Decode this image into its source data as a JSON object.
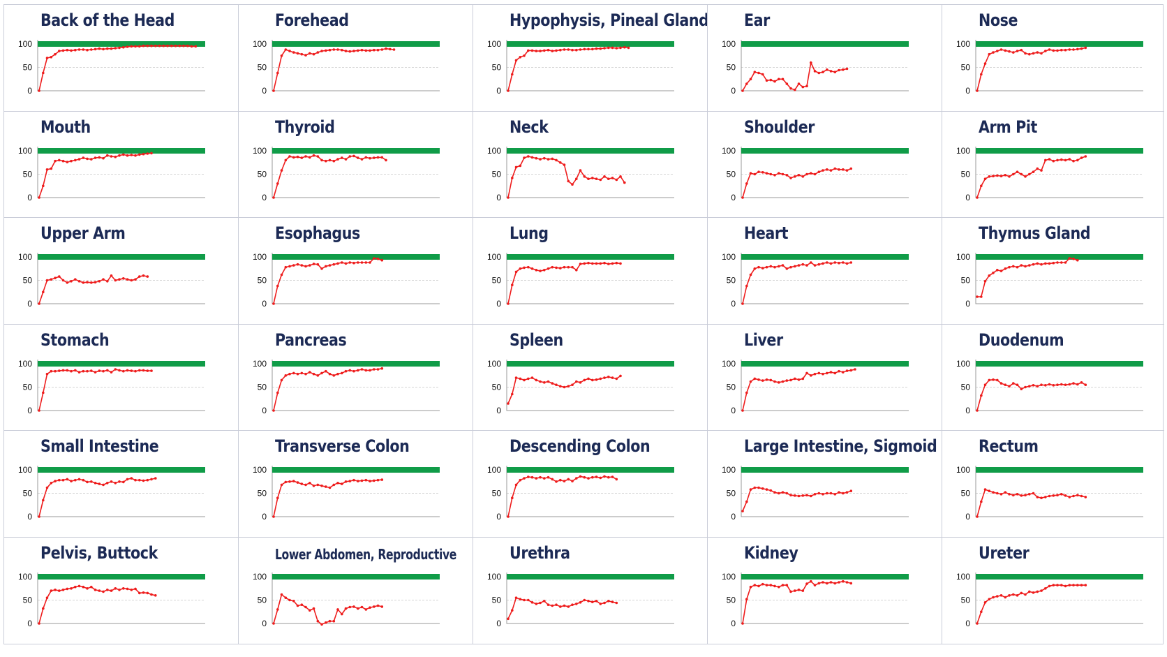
{
  "chart_data": [
    {
      "type": "line",
      "title": "Back of the Head",
      "ylim": [
        0,
        100
      ],
      "yticks": [
        0,
        50,
        100
      ],
      "target": 100,
      "values": [
        0,
        38,
        70,
        72,
        78,
        85,
        86,
        87,
        86,
        87,
        88,
        88,
        87,
        88,
        89,
        90,
        89,
        90,
        90,
        91,
        92,
        93,
        94,
        95,
        95,
        95,
        96,
        96,
        96,
        96,
        96,
        96,
        96,
        96,
        96,
        96,
        96,
        96,
        95,
        95
      ]
    },
    {
      "type": "line",
      "title": "Forehead",
      "ylim": [
        0,
        100
      ],
      "yticks": [
        0,
        50,
        100
      ],
      "target": 100,
      "values": [
        0,
        38,
        75,
        88,
        85,
        82,
        80,
        78,
        76,
        80,
        78,
        82,
        85,
        86,
        87,
        88,
        88,
        87,
        85,
        84,
        85,
        86,
        87,
        86,
        86,
        87,
        87,
        88,
        90,
        89,
        88
      ]
    },
    {
      "type": "line",
      "title": "Hypophysis, Pineal Gland",
      "ylim": [
        0,
        100
      ],
      "yticks": [
        0,
        50,
        100
      ],
      "target": 100,
      "values": [
        0,
        35,
        65,
        72,
        75,
        86,
        86,
        85,
        85,
        86,
        87,
        85,
        86,
        87,
        88,
        88,
        87,
        87,
        88,
        89,
        89,
        89,
        90,
        90,
        91,
        92,
        92,
        91,
        92,
        93,
        92
      ]
    },
    {
      "type": "line",
      "title": "Ear",
      "ylim": [
        0,
        100
      ],
      "yticks": [
        0,
        50,
        100
      ],
      "target": 100,
      "values": [
        0,
        15,
        25,
        40,
        38,
        35,
        22,
        23,
        20,
        25,
        25,
        15,
        5,
        2,
        15,
        8,
        10,
        60,
        42,
        38,
        40,
        45,
        42,
        40,
        44,
        45,
        47
      ]
    },
    {
      "type": "line",
      "title": "Nose",
      "ylim": [
        0,
        100
      ],
      "yticks": [
        0,
        50,
        100
      ],
      "target": 100,
      "values": [
        0,
        35,
        58,
        78,
        82,
        85,
        88,
        86,
        84,
        82,
        85,
        87,
        80,
        78,
        80,
        82,
        80,
        85,
        88,
        86,
        86,
        87,
        87,
        88,
        88,
        89,
        90,
        92
      ]
    },
    {
      "type": "line",
      "title": "Mouth",
      "ylim": [
        0,
        100
      ],
      "yticks": [
        0,
        50,
        100
      ],
      "target": 100,
      "values": [
        0,
        25,
        60,
        62,
        78,
        80,
        78,
        76,
        78,
        80,
        82,
        85,
        83,
        82,
        85,
        86,
        84,
        90,
        88,
        87,
        90,
        92,
        90,
        91,
        90,
        92,
        93,
        94,
        95
      ]
    },
    {
      "type": "line",
      "title": "Thyroid",
      "ylim": [
        0,
        100
      ],
      "yticks": [
        0,
        50,
        100
      ],
      "target": 100,
      "values": [
        0,
        30,
        58,
        80,
        88,
        86,
        87,
        85,
        88,
        86,
        90,
        88,
        80,
        78,
        80,
        78,
        82,
        85,
        82,
        88,
        89,
        85,
        82,
        86,
        84,
        85,
        86,
        86,
        80
      ]
    },
    {
      "type": "line",
      "title": "Neck",
      "ylim": [
        0,
        100
      ],
      "yticks": [
        0,
        50,
        100
      ],
      "target": 100,
      "values": [
        0,
        42,
        65,
        68,
        85,
        88,
        86,
        84,
        82,
        84,
        82,
        83,
        80,
        75,
        70,
        35,
        28,
        40,
        58,
        45,
        40,
        42,
        40,
        38,
        45,
        40,
        42,
        38,
        45,
        32
      ]
    },
    {
      "type": "line",
      "title": "Shoulder",
      "ylim": [
        0,
        100
      ],
      "yticks": [
        0,
        50,
        100
      ],
      "target": 100,
      "values": [
        0,
        30,
        52,
        50,
        55,
        54,
        52,
        50,
        48,
        52,
        50,
        48,
        42,
        45,
        48,
        45,
        50,
        52,
        50,
        55,
        58,
        60,
        58,
        62,
        60,
        60,
        58,
        62
      ]
    },
    {
      "type": "line",
      "title": "Arm Pit",
      "ylim": [
        0,
        100
      ],
      "yticks": [
        0,
        50,
        100
      ],
      "target": 100,
      "values": [
        0,
        25,
        40,
        45,
        46,
        47,
        46,
        48,
        45,
        50,
        55,
        50,
        45,
        50,
        55,
        62,
        58,
        80,
        82,
        78,
        80,
        81,
        80,
        82,
        78,
        80,
        85,
        88
      ]
    },
    {
      "type": "line",
      "title": "Upper Arm",
      "ylim": [
        0,
        100
      ],
      "yticks": [
        0,
        50,
        100
      ],
      "target": 100,
      "values": [
        0,
        25,
        50,
        52,
        55,
        58,
        50,
        45,
        48,
        52,
        48,
        45,
        46,
        45,
        46,
        48,
        52,
        48,
        60,
        50,
        52,
        54,
        52,
        50,
        52,
        58,
        60,
        58
      ]
    },
    {
      "type": "line",
      "title": "Esophagus",
      "ylim": [
        0,
        100
      ],
      "yticks": [
        0,
        50,
        100
      ],
      "target": 100,
      "values": [
        0,
        38,
        62,
        78,
        80,
        82,
        84,
        82,
        80,
        82,
        85,
        84,
        75,
        80,
        82,
        84,
        86,
        88,
        86,
        88,
        87,
        88,
        88,
        88,
        88,
        97,
        96,
        93
      ]
    },
    {
      "type": "line",
      "title": "Lung",
      "ylim": [
        0,
        100
      ],
      "yticks": [
        0,
        50,
        100
      ],
      "target": 100,
      "values": [
        0,
        40,
        68,
        75,
        77,
        78,
        75,
        72,
        70,
        72,
        75,
        78,
        77,
        76,
        78,
        78,
        78,
        72,
        85,
        86,
        87,
        86,
        86,
        86,
        87,
        85,
        86,
        87,
        86
      ]
    },
    {
      "type": "line",
      "title": "Heart",
      "ylim": [
        0,
        100
      ],
      "yticks": [
        0,
        50,
        100
      ],
      "target": 100,
      "values": [
        0,
        38,
        62,
        75,
        78,
        76,
        78,
        80,
        78,
        80,
        82,
        75,
        78,
        80,
        82,
        84,
        82,
        88,
        82,
        84,
        86,
        88,
        86,
        88,
        87,
        88,
        86,
        88
      ]
    },
    {
      "type": "line",
      "title": "Thymus Gland",
      "ylim": [
        0,
        100
      ],
      "yticks": [
        0,
        50,
        100
      ],
      "target": 100,
      "values": [
        15,
        15,
        48,
        60,
        66,
        72,
        70,
        75,
        78,
        80,
        78,
        82,
        80,
        82,
        84,
        86,
        84,
        86,
        86,
        87,
        88,
        88,
        88,
        97,
        96,
        93
      ]
    },
    {
      "type": "line",
      "title": "Stomach",
      "ylim": [
        0,
        100
      ],
      "yticks": [
        0,
        50,
        100
      ],
      "target": 100,
      "values": [
        0,
        38,
        78,
        84,
        84,
        85,
        86,
        86,
        84,
        86,
        82,
        84,
        84,
        85,
        82,
        85,
        84,
        86,
        82,
        88,
        86,
        84,
        86,
        85,
        84,
        86,
        86,
        85,
        85
      ]
    },
    {
      "type": "line",
      "title": "Pancreas",
      "ylim": [
        0,
        100
      ],
      "yticks": [
        0,
        50,
        100
      ],
      "target": 100,
      "values": [
        0,
        38,
        65,
        75,
        78,
        80,
        78,
        80,
        78,
        82,
        78,
        75,
        80,
        84,
        78,
        75,
        78,
        80,
        84,
        86,
        84,
        86,
        88,
        86,
        86,
        88,
        88,
        90
      ]
    },
    {
      "type": "line",
      "title": "Spleen",
      "ylim": [
        0,
        100
      ],
      "yticks": [
        0,
        50,
        100
      ],
      "target": 100,
      "values": [
        15,
        35,
        70,
        68,
        65,
        68,
        70,
        65,
        62,
        60,
        62,
        58,
        55,
        52,
        50,
        52,
        55,
        62,
        60,
        65,
        68,
        65,
        66,
        68,
        70,
        72,
        70,
        68,
        74
      ]
    },
    {
      "type": "line",
      "title": "Liver",
      "ylim": [
        0,
        100
      ],
      "yticks": [
        0,
        50,
        100
      ],
      "target": 100,
      "values": [
        0,
        38,
        62,
        68,
        66,
        64,
        66,
        65,
        62,
        60,
        62,
        64,
        65,
        68,
        66,
        68,
        80,
        75,
        78,
        80,
        78,
        80,
        82,
        80,
        84,
        82,
        85,
        86,
        88
      ]
    },
    {
      "type": "line",
      "title": "Duodenum",
      "ylim": [
        0,
        100
      ],
      "yticks": [
        0,
        50,
        100
      ],
      "target": 100,
      "values": [
        0,
        32,
        55,
        65,
        66,
        65,
        58,
        55,
        52,
        58,
        55,
        46,
        50,
        52,
        54,
        52,
        55,
        54,
        56,
        54,
        55,
        56,
        55,
        56,
        58,
        56,
        60,
        55
      ]
    },
    {
      "type": "line",
      "title": "Small Intestine",
      "ylim": [
        0,
        100
      ],
      "yticks": [
        0,
        50,
        100
      ],
      "target": 100,
      "values": [
        0,
        35,
        62,
        72,
        76,
        78,
        78,
        80,
        76,
        78,
        80,
        78,
        74,
        75,
        72,
        70,
        68,
        72,
        75,
        72,
        75,
        74,
        80,
        82,
        78,
        78,
        77,
        78,
        80,
        82
      ]
    },
    {
      "type": "line",
      "title": "Transverse Colon",
      "ylim": [
        0,
        100
      ],
      "yticks": [
        0,
        50,
        100
      ],
      "target": 100,
      "values": [
        0,
        40,
        68,
        74,
        75,
        76,
        73,
        70,
        68,
        72,
        66,
        68,
        66,
        64,
        62,
        68,
        72,
        70,
        75,
        76,
        78,
        76,
        77,
        78,
        76,
        77,
        78,
        79
      ]
    },
    {
      "type": "line",
      "title": "Descending Colon",
      "ylim": [
        0,
        100
      ],
      "yticks": [
        0,
        50,
        100
      ],
      "target": 100,
      "values": [
        0,
        40,
        68,
        78,
        82,
        85,
        84,
        82,
        84,
        82,
        84,
        80,
        75,
        78,
        76,
        80,
        76,
        82,
        86,
        84,
        82,
        84,
        85,
        83,
        86,
        84,
        85,
        80
      ]
    },
    {
      "type": "line",
      "title": "Large Intestine, Sigmoid",
      "ylim": [
        0,
        100
      ],
      "yticks": [
        0,
        50,
        100
      ],
      "target": 100,
      "values": [
        12,
        32,
        58,
        62,
        62,
        60,
        58,
        56,
        52,
        50,
        52,
        50,
        46,
        45,
        44,
        45,
        46,
        44,
        48,
        50,
        48,
        50,
        50,
        48,
        52,
        50,
        52,
        55
      ]
    },
    {
      "type": "line",
      "title": "Rectum",
      "ylim": [
        0,
        100
      ],
      "yticks": [
        0,
        50,
        100
      ],
      "target": 100,
      "values": [
        0,
        32,
        58,
        55,
        52,
        50,
        48,
        52,
        48,
        46,
        48,
        45,
        46,
        48,
        50,
        42,
        40,
        42,
        44,
        45,
        46,
        48,
        45,
        42,
        44,
        46,
        44,
        42
      ]
    },
    {
      "type": "line",
      "title": "Pelvis, Buttock",
      "ylim": [
        0,
        100
      ],
      "yticks": [
        0,
        50,
        100
      ],
      "target": 100,
      "values": [
        0,
        32,
        55,
        70,
        72,
        70,
        72,
        74,
        75,
        78,
        80,
        78,
        75,
        78,
        72,
        70,
        68,
        72,
        70,
        75,
        72,
        75,
        74,
        72,
        74,
        65,
        66,
        65,
        62,
        60
      ]
    },
    {
      "type": "line",
      "title": "Lower Abdomen, Reproductive",
      "ylim": [
        0,
        100
      ],
      "yticks": [
        0,
        50,
        100
      ],
      "target": 100,
      "values": [
        0,
        30,
        62,
        55,
        50,
        48,
        38,
        40,
        35,
        28,
        32,
        5,
        -2,
        2,
        5,
        5,
        30,
        20,
        32,
        35,
        36,
        32,
        35,
        30,
        34,
        36,
        38,
        36
      ]
    },
    {
      "type": "line",
      "title": "Urethra",
      "ylim": [
        0,
        100
      ],
      "yticks": [
        0,
        50,
        100
      ],
      "target": 100,
      "values": [
        10,
        28,
        55,
        52,
        50,
        50,
        45,
        42,
        44,
        48,
        40,
        38,
        40,
        36,
        38,
        36,
        40,
        42,
        45,
        50,
        48,
        46,
        48,
        42,
        44,
        48,
        46,
        44
      ]
    },
    {
      "type": "line",
      "title": "Kidney",
      "ylim": [
        0,
        100
      ],
      "yticks": [
        0,
        50,
        100
      ],
      "target": 100,
      "values": [
        0,
        52,
        78,
        82,
        80,
        84,
        82,
        82,
        80,
        78,
        82,
        82,
        68,
        70,
        72,
        70,
        85,
        90,
        82,
        86,
        88,
        86,
        88,
        86,
        88,
        90,
        88,
        86
      ]
    },
    {
      "type": "line",
      "title": "Ureter",
      "ylim": [
        0,
        100
      ],
      "yticks": [
        0,
        50,
        100
      ],
      "target": 100,
      "values": [
        0,
        25,
        45,
        52,
        56,
        58,
        60,
        56,
        60,
        62,
        60,
        65,
        62,
        68,
        66,
        68,
        70,
        75,
        80,
        82,
        82,
        82,
        80,
        82,
        82,
        82,
        82,
        82
      ]
    }
  ],
  "colors": {
    "series": "#ee1c1c",
    "target": "#109c48",
    "grid": "#c8c8c8",
    "title": "#1c2a55",
    "border": "#c9ccd8"
  }
}
